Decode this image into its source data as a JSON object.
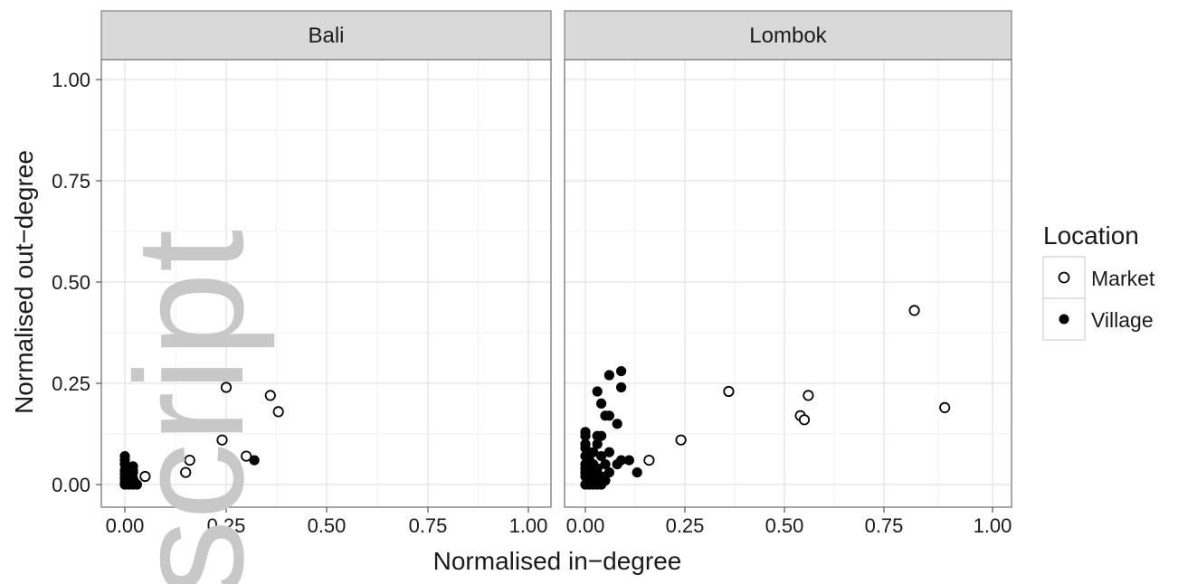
{
  "chart_data": {
    "type": "scatter",
    "xlabel": "Normalised in−degree",
    "ylabel": "Normalised out−degree",
    "xlim": [
      -0.05,
      1.04
    ],
    "ylim": [
      -0.05,
      1.05
    ],
    "x_ticks": [
      "0.00",
      "0.25",
      "0.50",
      "0.75",
      "1.00"
    ],
    "y_ticks": [
      "0.00",
      "0.25",
      "0.50",
      "0.75",
      "1.00"
    ],
    "tick_values": [
      0,
      0.25,
      0.5,
      0.75,
      1.0
    ],
    "grid": true,
    "legend": {
      "title": "Location",
      "placement": "right",
      "entries": [
        {
          "label": "Market",
          "marker": "open-circle"
        },
        {
          "label": "Village",
          "marker": "filled-circle"
        }
      ]
    },
    "watermark": "script",
    "panels": [
      {
        "title": "Bali",
        "series": [
          {
            "name": "Market",
            "points": [
              [
                0.25,
                0.24
              ],
              [
                0.36,
                0.22
              ],
              [
                0.38,
                0.18
              ],
              [
                0.24,
                0.11
              ],
              [
                0.3,
                0.07
              ],
              [
                0.16,
                0.06
              ],
              [
                0.15,
                0.03
              ],
              [
                0.05,
                0.02
              ]
            ]
          },
          {
            "name": "Village",
            "points": [
              [
                0.32,
                0.06
              ],
              [
                0.0,
                0.07
              ],
              [
                0.0,
                0.06
              ],
              [
                0.0,
                0.05
              ],
              [
                0.01,
                0.04
              ],
              [
                0.0,
                0.035
              ],
              [
                0.01,
                0.03
              ],
              [
                0.0,
                0.025
              ],
              [
                0.01,
                0.02
              ],
              [
                0.0,
                0.015
              ],
              [
                0.01,
                0.01
              ],
              [
                0.0,
                0.005
              ],
              [
                0.01,
                0.0
              ],
              [
                0.02,
                0.0
              ],
              [
                0.02,
                0.045
              ],
              [
                0.02,
                0.03
              ],
              [
                0.02,
                0.015
              ],
              [
                0.025,
                0.005
              ],
              [
                0.015,
                0.025
              ],
              [
                0.03,
                0.0
              ],
              [
                0.0,
                0.0
              ],
              [
                0.02,
                0.035
              ]
            ]
          }
        ]
      },
      {
        "title": "Lombok",
        "series": [
          {
            "name": "Market",
            "points": [
              [
                0.82,
                0.43
              ],
              [
                0.89,
                0.19
              ],
              [
                0.56,
                0.22
              ],
              [
                0.54,
                0.17
              ],
              [
                0.55,
                0.16
              ],
              [
                0.36,
                0.23
              ],
              [
                0.24,
                0.11
              ],
              [
                0.16,
                0.06
              ]
            ]
          },
          {
            "name": "Village",
            "points": [
              [
                0.09,
                0.28
              ],
              [
                0.06,
                0.27
              ],
              [
                0.09,
                0.24
              ],
              [
                0.03,
                0.23
              ],
              [
                0.04,
                0.2
              ],
              [
                0.05,
                0.17
              ],
              [
                0.06,
                0.17
              ],
              [
                0.08,
                0.15
              ],
              [
                0.0,
                0.13
              ],
              [
                0.0,
                0.12
              ],
              [
                0.04,
                0.12
              ],
              [
                0.03,
                0.12
              ],
              [
                0.03,
                0.1
              ],
              [
                0.0,
                0.1
              ],
              [
                0.0,
                0.09
              ],
              [
                0.02,
                0.08
              ],
              [
                0.06,
                0.08
              ],
              [
                0.0,
                0.07
              ],
              [
                0.04,
                0.07
              ],
              [
                0.01,
                0.06
              ],
              [
                0.09,
                0.06
              ],
              [
                0.11,
                0.06
              ],
              [
                0.05,
                0.05
              ],
              [
                0.08,
                0.05
              ],
              [
                0.02,
                0.05
              ],
              [
                0.0,
                0.04
              ],
              [
                0.03,
                0.04
              ],
              [
                0.0,
                0.03
              ],
              [
                0.06,
                0.03
              ],
              [
                0.13,
                0.03
              ],
              [
                0.02,
                0.03
              ],
              [
                0.0,
                0.02
              ],
              [
                0.04,
                0.02
              ],
              [
                0.01,
                0.01
              ],
              [
                0.03,
                0.01
              ],
              [
                0.05,
                0.01
              ],
              [
                0.0,
                0.0
              ],
              [
                0.01,
                0.0
              ],
              [
                0.02,
                0.0
              ],
              [
                0.03,
                0.0
              ],
              [
                0.04,
                0.0
              ],
              [
                0.0,
                0.05
              ],
              [
                0.01,
                0.04
              ],
              [
                0.02,
                0.02
              ]
            ]
          }
        ]
      }
    ]
  }
}
